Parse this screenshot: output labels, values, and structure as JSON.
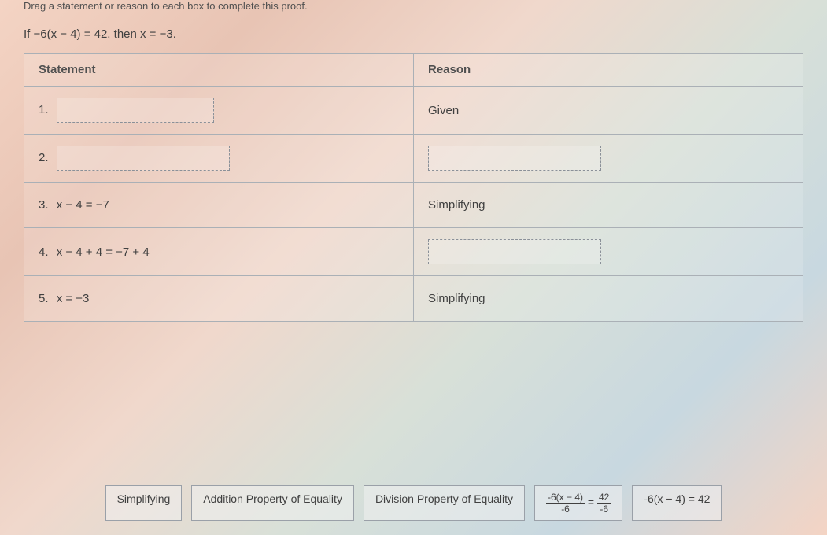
{
  "top_instruction": "Drag a statement or reason to each box to complete this proof.",
  "problem_text": "If −6(x − 4) = 42, then x = −3.",
  "table": {
    "headers": {
      "statement": "Statement",
      "reason": "Reason"
    },
    "rows": [
      {
        "num": "1.",
        "statement_is_blank": true,
        "statement": "",
        "reason_is_blank": false,
        "reason": "Given"
      },
      {
        "num": "2.",
        "statement_is_blank": true,
        "statement": "",
        "reason_is_blank": true,
        "reason": ""
      },
      {
        "num": "3.",
        "statement_is_blank": false,
        "statement": "x − 4 = −7",
        "reason_is_blank": false,
        "reason": "Simplifying"
      },
      {
        "num": "4.",
        "statement_is_blank": false,
        "statement": "x − 4 + 4 = −7 + 4",
        "reason_is_blank": true,
        "reason": ""
      },
      {
        "num": "5.",
        "statement_is_blank": false,
        "statement": "x = −3",
        "reason_is_blank": false,
        "reason": "Simplifying"
      }
    ]
  },
  "tiles": {
    "simplifying": "Simplifying",
    "addition": "Addition Property of Equality",
    "division": "Division Property of Equality",
    "frac_eq": {
      "left_num": "-6(x − 4)",
      "left_den": "-6",
      "eq": " = ",
      "right_num": "42",
      "right_den": "-6"
    },
    "orig_eq": "-6(x − 4) = 42"
  },
  "colors": {
    "border": "#aab0b6",
    "text": "#404040",
    "dashed": "#8a9098"
  }
}
